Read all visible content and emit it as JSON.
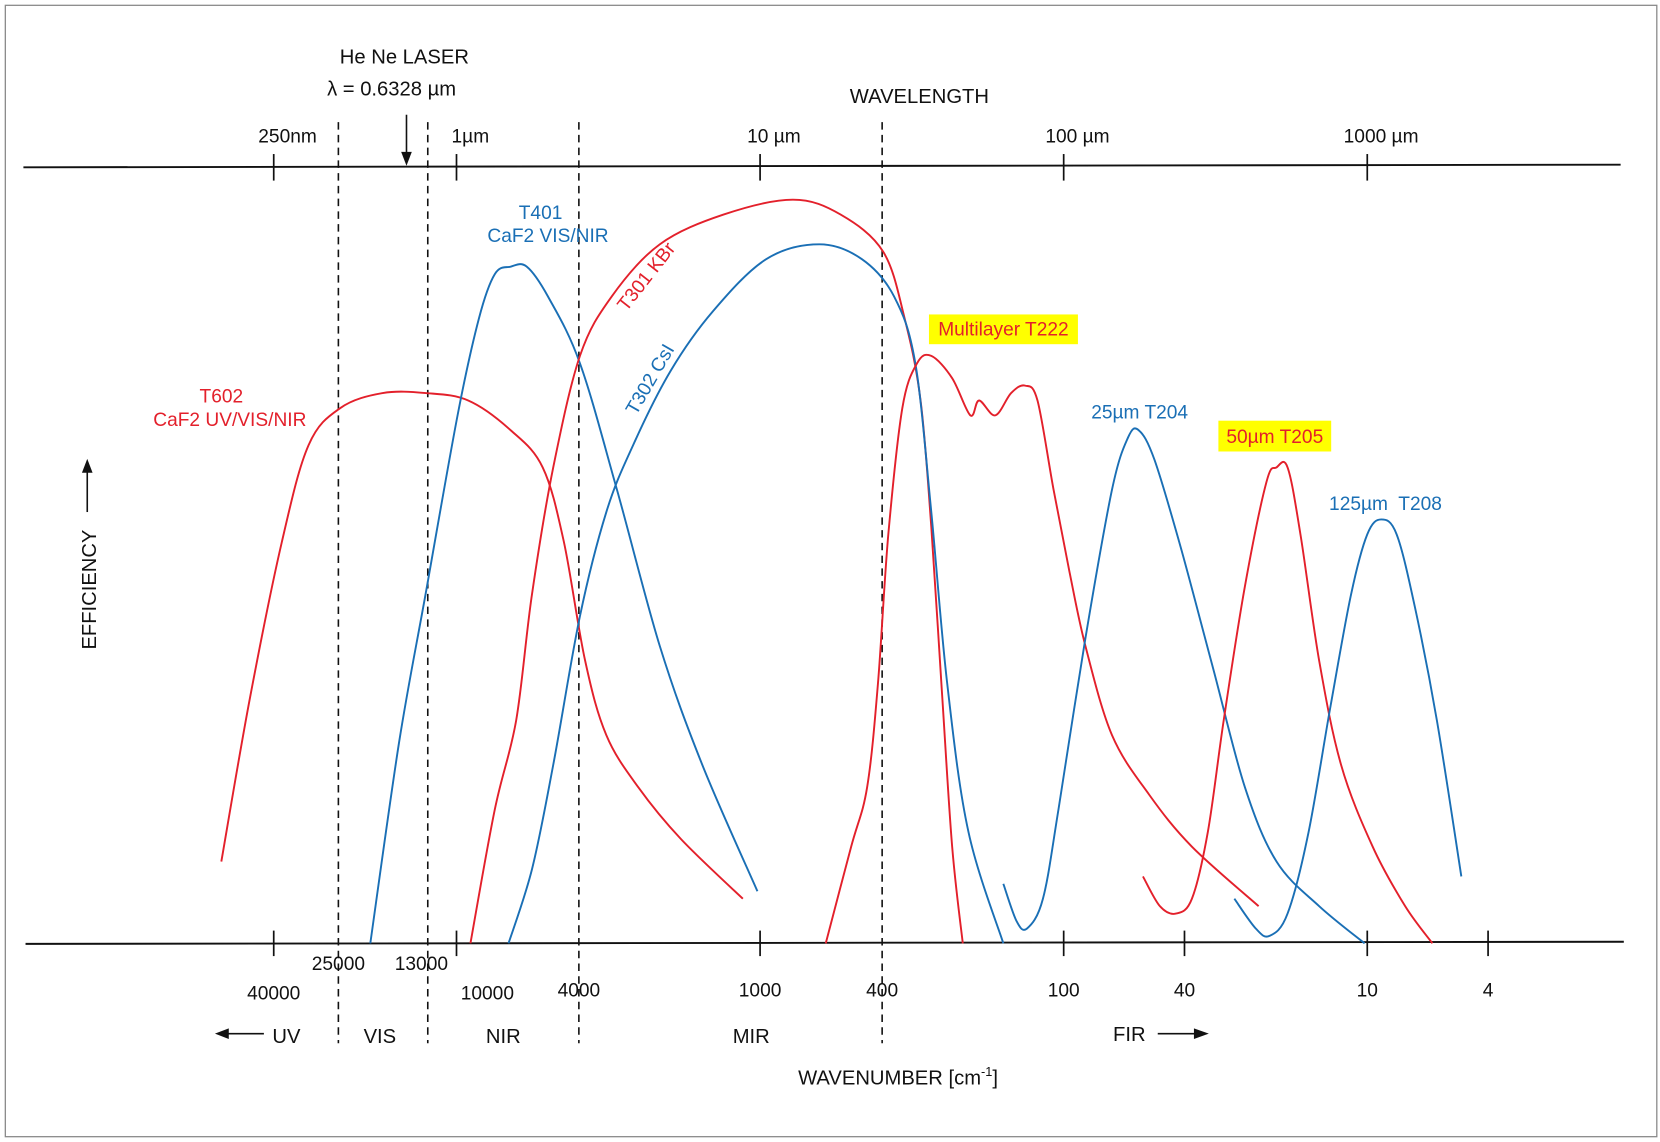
{
  "chart_data": {
    "type": "line",
    "x_scale": "log",
    "x_reversed": true,
    "title": "",
    "top_axis": {
      "label": "WAVELENGTH",
      "ticks": [
        {
          "label": "250nm",
          "wavenumber": 40000
        },
        {
          "label": "1µm",
          "wavenumber": 10000
        },
        {
          "label": "10 µm",
          "wavenumber": 1000
        },
        {
          "label": "100 µm",
          "wavenumber": 100
        },
        {
          "label": "1000 µm",
          "wavenumber": 10
        }
      ]
    },
    "bottom_axis": {
      "label": "WAVENUMBER [cm",
      "label_sup": "-1",
      "label_end": "]",
      "ticks": [
        {
          "label": "40000",
          "wavenumber": 40000
        },
        {
          "label": "10000",
          "wavenumber": 10000
        },
        {
          "label": "1000",
          "wavenumber": 1000
        },
        {
          "label": "100",
          "wavenumber": 100
        },
        {
          "label": "40",
          "wavenumber": 40
        },
        {
          "label": "10",
          "wavenumber": 10
        },
        {
          "label": "4",
          "wavenumber": 4
        }
      ],
      "boundary_labels": [
        {
          "label": "25000",
          "wavenumber": 25000
        },
        {
          "label": "13000",
          "wavenumber": 13000
        },
        {
          "label": "4000",
          "wavenumber": 4000
        },
        {
          "label": "400",
          "wavenumber": 400
        }
      ]
    },
    "ylabel": "EFFICIENCY",
    "ylim": [
      0,
      1
    ],
    "regions": [
      {
        "label": "UV",
        "arrow": "left"
      },
      {
        "label": "VIS"
      },
      {
        "label": "NIR"
      },
      {
        "label": "MIR"
      },
      {
        "label": "FIR",
        "arrow": "right"
      }
    ],
    "laser": {
      "line1": "He Ne LASER",
      "line2": "λ = 0.6328 µm",
      "wavelength_um": 0.6328
    },
    "colors": {
      "red": "#e3202b",
      "blue": "#1a6fb5",
      "highlight": "#ffff00",
      "axis": "#111111"
    },
    "series": [
      {
        "name": "T602",
        "sublabel": "CaF2 UV/VIS/NIR",
        "color": "red",
        "x": [
          59500,
          47900,
          37600,
          30700,
          24100,
          17500,
          12640,
          9150,
          6630,
          5200,
          4430,
          3770,
          3210,
          2520,
          1820,
          1140
        ],
        "y": [
          0.11,
          0.33,
          0.54,
          0.67,
          0.72,
          0.74,
          0.74,
          0.73,
          0.69,
          0.64,
          0.54,
          0.38,
          0.28,
          0.21,
          0.14,
          0.06
        ]
      },
      {
        "name": "T401",
        "sublabel": "CaF2 VIS/NIR",
        "color": "blue",
        "x": [
          19230,
          15460,
          12640,
          9920,
          8440,
          7480,
          6630,
          5870,
          5000,
          3920,
          2960,
          2140,
          1550,
          1020
        ],
        "y": [
          0,
          0.27,
          0.47,
          0.71,
          0.84,
          0.9,
          0.91,
          0.91,
          0.87,
          0.78,
          0.61,
          0.4,
          0.24,
          0.07
        ]
      },
      {
        "name": "T301 KBr",
        "color": "red",
        "x": [
          9000,
          7480,
          6360,
          5640,
          4800,
          3920,
          3080,
          2140,
          1320,
          780,
          543,
          393,
          334,
          296,
          273,
          252,
          233,
          215
        ],
        "y": [
          0,
          0.18,
          0.3,
          0.47,
          0.64,
          0.79,
          0.87,
          0.94,
          0.98,
          1.0,
          0.98,
          0.93,
          0.84,
          0.73,
          0.56,
          0.34,
          0.13,
          0
        ]
      },
      {
        "name": "T302 CsI",
        "color": "blue",
        "x": [
          6740,
          5640,
          4800,
          3920,
          3210,
          2620,
          1970,
          1430,
          955,
          638,
          462,
          362,
          308,
          273,
          242,
          206,
          158
        ],
        "y": [
          0,
          0.1,
          0.24,
          0.44,
          0.58,
          0.67,
          0.77,
          0.85,
          0.92,
          0.94,
          0.92,
          0.87,
          0.78,
          0.58,
          0.35,
          0.15,
          0
        ]
      },
      {
        "name": "Multilayer T222",
        "color": "red",
        "highlighted": true,
        "x": [
          608,
          501,
          444,
          409,
          378,
          340,
          304,
          273,
          233,
          203,
          190,
          168,
          149,
          134,
          122,
          108,
          95.7,
          84.8,
          69.3,
          52.3,
          37.8,
          22.8
        ],
        "y": [
          0,
          0.13,
          0.21,
          0.35,
          0.55,
          0.72,
          0.78,
          0.79,
          0.76,
          0.71,
          0.73,
          0.71,
          0.74,
          0.75,
          0.73,
          0.61,
          0.5,
          0.4,
          0.28,
          0.2,
          0.13,
          0.05
        ]
      },
      {
        "name": "25µm T204",
        "color": "blue",
        "x": [
          158,
          143,
          132,
          117,
          104,
          84.8,
          69.3,
          61.4,
          56.6,
          50.2,
          41.0,
          32.2,
          25.3,
          19.9,
          14.4,
          10.2
        ],
        "y": [
          0.08,
          0.03,
          0.02,
          0.06,
          0.18,
          0.41,
          0.61,
          0.68,
          0.69,
          0.65,
          0.53,
          0.37,
          0.21,
          0.11,
          0.05,
          0
        ]
      },
      {
        "name": "50µm T205",
        "color": "red",
        "highlighted": true,
        "x": [
          54.8,
          48.2,
          42.7,
          37.8,
          33.5,
          29.7,
          25.3,
          21.5,
          19.9,
          18.3,
          16.6,
          14.4,
          12.2,
          9.6,
          7.5,
          6.1
        ],
        "y": [
          0.09,
          0.05,
          0.04,
          0.06,
          0.15,
          0.3,
          0.48,
          0.62,
          0.64,
          0.64,
          0.55,
          0.38,
          0.24,
          0.13,
          0.05,
          0
        ]
      },
      {
        "name": "125µm  T208",
        "color": "blue",
        "x": [
          27.4,
          23.3,
          21.0,
          18.3,
          15.6,
          13.2,
          11.3,
          10,
          9.0,
          8.0,
          6.95,
          5.9,
          4.9
        ],
        "y": [
          0.06,
          0.02,
          0.01,
          0.04,
          0.15,
          0.32,
          0.47,
          0.55,
          0.57,
          0.55,
          0.45,
          0.3,
          0.09
        ]
      }
    ]
  }
}
